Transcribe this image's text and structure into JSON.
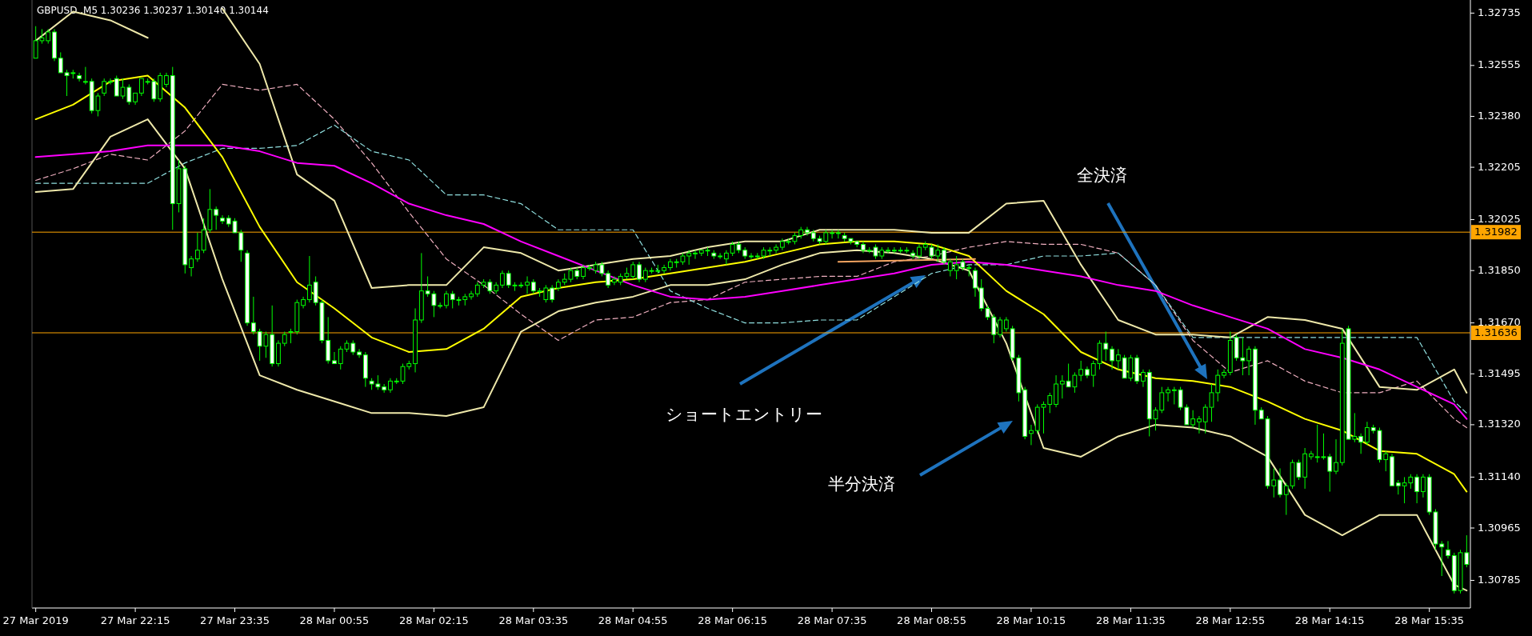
{
  "chart_data": {
    "type": "candlestick",
    "title": "GBPUSD.,M5 1.30236 1.30237 1.30140 1.30144",
    "color": "#00ff00",
    "x": [
      "2019-03-27T20:55",
      "2019-03-27T21:00",
      "2019-03-27T21:05",
      "2019-03-27T21:10",
      "2019-03-27T21:15",
      "2019-03-27T21:20",
      "2019-03-27T21:25",
      "2019-03-27T21:30",
      "2019-03-27T21:35",
      "2019-03-27T21:40",
      "2019-03-27T21:45",
      "2019-03-27T21:50",
      "2019-03-27T21:55",
      "2019-03-27T22:00",
      "2019-03-27T22:05",
      "2019-03-27T22:10",
      "2019-03-27T22:15",
      "2019-03-27T22:20",
      "2019-03-27T22:25",
      "2019-03-27T22:30",
      "2019-03-27T22:35",
      "2019-03-27T22:40",
      "2019-03-27T22:45",
      "2019-03-27T22:50",
      "2019-03-27T22:55",
      "2019-03-27T23:00",
      "2019-03-27T23:05",
      "2019-03-27T23:10",
      "2019-03-27T23:15",
      "2019-03-27T23:20",
      "2019-03-27T23:25",
      "2019-03-27T23:30",
      "2019-03-27T23:35",
      "2019-03-27T23:40",
      "2019-03-27T23:45",
      "2019-03-27T23:50",
      "2019-03-27T23:55",
      "2019-03-28T00:00",
      "2019-03-28T00:05",
      "2019-03-28T00:10",
      "2019-03-28T00:15",
      "2019-03-28T00:20",
      "2019-03-28T00:25",
      "2019-03-28T00:30",
      "2019-03-28T00:35",
      "2019-03-28T00:40",
      "2019-03-28T00:45",
      "2019-03-28T00:50",
      "2019-03-28T00:55",
      "2019-03-28T01:00",
      "2019-03-28T01:05",
      "2019-03-28T01:10",
      "2019-03-28T01:15",
      "2019-03-28T01:20",
      "2019-03-28T01:25",
      "2019-03-28T01:30",
      "2019-03-28T01:35",
      "2019-03-28T01:40",
      "2019-03-28T01:45",
      "2019-03-28T01:50",
      "2019-03-28T01:55",
      "2019-03-28T02:00",
      "2019-03-28T02:05",
      "2019-03-28T02:10",
      "2019-03-28T02:15",
      "2019-03-28T02:20",
      "2019-03-28T02:25",
      "2019-03-28T02:30",
      "2019-03-28T02:35",
      "2019-03-28T02:40",
      "2019-03-28T02:45",
      "2019-03-28T02:50",
      "2019-03-28T02:55",
      "2019-03-28T03:00",
      "2019-03-28T03:05",
      "2019-03-28T03:10",
      "2019-03-28T03:15",
      "2019-03-28T03:20",
      "2019-03-28T03:25",
      "2019-03-28T03:30",
      "2019-03-28T03:35",
      "2019-03-28T03:40",
      "2019-03-28T03:45",
      "2019-03-28T03:50",
      "2019-03-28T03:55",
      "2019-03-28T04:00",
      "2019-03-28T04:05",
      "2019-03-28T04:10",
      "2019-03-28T04:15",
      "2019-03-28T04:20",
      "2019-03-28T04:25",
      "2019-03-28T04:30",
      "2019-03-28T04:35",
      "2019-03-28T04:40",
      "2019-03-28T04:45",
      "2019-03-28T04:50",
      "2019-03-28T04:55",
      "2019-03-28T05:00",
      "2019-03-28T05:05",
      "2019-03-28T05:10",
      "2019-03-28T05:15",
      "2019-03-28T05:20",
      "2019-03-28T05:25",
      "2019-03-28T05:30",
      "2019-03-28T05:35",
      "2019-03-28T05:40",
      "2019-03-28T05:45",
      "2019-03-28T05:50",
      "2019-03-28T05:55",
      "2019-03-28T06:00",
      "2019-03-28T06:05",
      "2019-03-28T06:10",
      "2019-03-28T06:15",
      "2019-03-28T06:20",
      "2019-03-28T06:25",
      "2019-03-28T06:30",
      "2019-03-28T06:35",
      "2019-03-28T06:40",
      "2019-03-28T06:45",
      "2019-03-28T06:50",
      "2019-03-28T06:55",
      "2019-03-28T07:00",
      "2019-03-28T07:05",
      "2019-03-28T07:10",
      "2019-03-28T07:15",
      "2019-03-28T07:20",
      "2019-03-28T07:25",
      "2019-03-28T07:30",
      "2019-03-28T07:35",
      "2019-03-28T07:40",
      "2019-03-28T07:45",
      "2019-03-28T07:50",
      "2019-03-28T07:55",
      "2019-03-28T08:00",
      "2019-03-28T08:05",
      "2019-03-28T08:10",
      "2019-03-28T08:15",
      "2019-03-28T08:20",
      "2019-03-28T08:25",
      "2019-03-28T08:30",
      "2019-03-28T08:35",
      "2019-03-28T08:40",
      "2019-03-28T08:45",
      "2019-03-28T08:50",
      "2019-03-28T08:55",
      "2019-03-28T09:00",
      "2019-03-28T09:05",
      "2019-03-28T09:10",
      "2019-03-28T09:15",
      "2019-03-28T09:20",
      "2019-03-28T09:25",
      "2019-03-28T09:30",
      "2019-03-28T09:35",
      "2019-03-28T09:40",
      "2019-03-28T09:45",
      "2019-03-28T09:50",
      "2019-03-28T09:55",
      "2019-03-28T10:00",
      "2019-03-28T10:05",
      "2019-03-28T10:10",
      "2019-03-28T10:15",
      "2019-03-28T10:20",
      "2019-03-28T10:25",
      "2019-03-28T10:30",
      "2019-03-28T10:35",
      "2019-03-28T10:40",
      "2019-03-28T10:45",
      "2019-03-28T10:50",
      "2019-03-28T10:55",
      "2019-03-28T11:00",
      "2019-03-28T11:05",
      "2019-03-28T11:10",
      "2019-03-28T11:15",
      "2019-03-28T11:20",
      "2019-03-28T11:25",
      "2019-03-28T11:30",
      "2019-03-28T11:35",
      "2019-03-28T11:40",
      "2019-03-28T11:45",
      "2019-03-28T11:50",
      "2019-03-28T11:55",
      "2019-03-28T12:00",
      "2019-03-28T12:05",
      "2019-03-28T12:10",
      "2019-03-28T12:15",
      "2019-03-28T12:20",
      "2019-03-28T12:25",
      "2019-03-28T12:30",
      "2019-03-28T12:35",
      "2019-03-28T12:40",
      "2019-03-28T12:45",
      "2019-03-28T12:50",
      "2019-03-28T12:55",
      "2019-03-28T13:00",
      "2019-03-28T13:05",
      "2019-03-28T13:10",
      "2019-03-28T13:15",
      "2019-03-28T13:20",
      "2019-03-28T13:25",
      "2019-03-28T13:30",
      "2019-03-28T13:35",
      "2019-03-28T13:40",
      "2019-03-28T13:45",
      "2019-03-28T13:50",
      "2019-03-28T13:55",
      "2019-03-28T14:00",
      "2019-03-28T14:05",
      "2019-03-28T14:10",
      "2019-03-28T14:15",
      "2019-03-28T14:20",
      "2019-03-28T14:25",
      "2019-03-28T14:30",
      "2019-03-28T14:35",
      "2019-03-28T14:40",
      "2019-03-28T14:45",
      "2019-03-28T14:50",
      "2019-03-28T14:55",
      "2019-03-28T15:00",
      "2019-03-28T15:05",
      "2019-03-28T15:10",
      "2019-03-28T15:15",
      "2019-03-28T15:20",
      "2019-03-28T15:25",
      "2019-03-28T15:30",
      "2019-03-28T15:35",
      "2019-03-28T15:40",
      "2019-03-28T15:45",
      "2019-03-28T15:50",
      "2019-03-28T15:55",
      "2019-03-28T16:00",
      "2019-03-28T16:05"
    ],
    "ohlc": [
      [
        1.3258,
        1.3269,
        1.3258,
        1.3264
      ],
      [
        1.3264,
        1.3268,
        1.3263,
        1.3265
      ],
      [
        1.3264,
        1.3268,
        1.3263,
        1.3267
      ],
      [
        1.3267,
        1.3268,
        1.3257,
        1.3258
      ],
      [
        1.3258,
        1.326,
        1.3253,
        1.3253
      ],
      [
        1.3253,
        1.3254,
        1.3245,
        1.3252
      ],
      [
        1.3253,
        1.3254,
        1.3251,
        1.3253
      ],
      [
        1.3252,
        1.3253,
        1.325,
        1.3251
      ],
      [
        1.325,
        1.3255,
        1.3249,
        1.325
      ],
      [
        1.325,
        1.3251,
        1.3239,
        1.324
      ],
      [
        1.324,
        1.3246,
        1.3238,
        1.3245
      ],
      [
        1.3246,
        1.3251,
        1.3245,
        1.325
      ],
      [
        1.325,
        1.3251,
        1.3249,
        1.325
      ],
      [
        1.3251,
        1.3252,
        1.3245,
        1.3245
      ],
      [
        1.3245,
        1.3251,
        1.3244,
        1.3248
      ],
      [
        1.3248,
        1.3249,
        1.3242,
        1.3243
      ],
      [
        1.3243,
        1.3246,
        1.3242,
        1.3246
      ],
      [
        1.3246,
        1.3251,
        1.3245,
        1.3251
      ],
      [
        1.325,
        1.3251,
        1.3249,
        1.325
      ],
      [
        1.325,
        1.3251,
        1.3243,
        1.3244
      ],
      [
        1.3244,
        1.3253,
        1.3243,
        1.3252
      ],
      [
        1.3249,
        1.3253,
        1.3248,
        1.3252
      ],
      [
        1.3252,
        1.3255,
        1.3199,
        1.3208
      ],
      [
        1.3208,
        1.3223,
        1.3205,
        1.322
      ],
      [
        1.322,
        1.3221,
        1.3184,
        1.3187
      ],
      [
        1.3186,
        1.319,
        1.3183,
        1.3189
      ],
      [
        1.3189,
        1.3198,
        1.3188,
        1.3192
      ],
      [
        1.3192,
        1.3203,
        1.3191,
        1.3199
      ],
      [
        1.3199,
        1.3213,
        1.3198,
        1.3206
      ],
      [
        1.3206,
        1.3207,
        1.3199,
        1.3204
      ],
      [
        1.3203,
        1.3204,
        1.3201,
        1.3202
      ],
      [
        1.3203,
        1.3204,
        1.32,
        1.3201
      ],
      [
        1.3202,
        1.3203,
        1.3198,
        1.3198
      ],
      [
        1.3198,
        1.3199,
        1.3188,
        1.3192
      ],
      [
        1.3191,
        1.3192,
        1.3166,
        1.3167
      ],
      [
        1.3167,
        1.3176,
        1.3163,
        1.3164
      ],
      [
        1.3164,
        1.3165,
        1.3154,
        1.3159
      ],
      [
        1.3159,
        1.3164,
        1.3155,
        1.3163
      ],
      [
        1.3163,
        1.3173,
        1.3152,
        1.3153
      ],
      [
        1.3153,
        1.3161,
        1.3152,
        1.316
      ],
      [
        1.316,
        1.3164,
        1.3159,
        1.3163
      ],
      [
        1.3164,
        1.3165,
        1.316,
        1.3164
      ],
      [
        1.3164,
        1.3175,
        1.3163,
        1.3174
      ],
      [
        1.3173,
        1.3176,
        1.3172,
        1.3175
      ],
      [
        1.3175,
        1.319,
        1.3174,
        1.318
      ],
      [
        1.3181,
        1.3183,
        1.3173,
        1.3174
      ],
      [
        1.3174,
        1.3175,
        1.316,
        1.3161
      ],
      [
        1.3161,
        1.3169,
        1.3153,
        1.3154
      ],
      [
        1.3154,
        1.3157,
        1.3153,
        1.3153
      ],
      [
        1.3153,
        1.3159,
        1.3151,
        1.3158
      ],
      [
        1.3158,
        1.3161,
        1.3157,
        1.316
      ],
      [
        1.316,
        1.3161,
        1.3156,
        1.3157
      ],
      [
        1.3157,
        1.3158,
        1.3155,
        1.3156
      ],
      [
        1.3156,
        1.3157,
        1.3145,
        1.3148
      ],
      [
        1.3147,
        1.3148,
        1.3144,
        1.3146
      ],
      [
        1.3146,
        1.3149,
        1.3144,
        1.3145
      ],
      [
        1.3145,
        1.3146,
        1.3143,
        1.3144
      ],
      [
        1.3144,
        1.3148,
        1.3143,
        1.3147
      ],
      [
        1.3147,
        1.3148,
        1.3146,
        1.3147
      ],
      [
        1.3147,
        1.3153,
        1.3146,
        1.3152
      ],
      [
        1.3152,
        1.3154,
        1.3151,
        1.3153
      ],
      [
        1.3153,
        1.3172,
        1.315,
        1.3168
      ],
      [
        1.3168,
        1.3191,
        1.3167,
        1.3178
      ],
      [
        1.3178,
        1.3183,
        1.3176,
        1.3177
      ],
      [
        1.3177,
        1.3178,
        1.3169,
        1.3173
      ],
      [
        1.3173,
        1.3174,
        1.3172,
        1.3173
      ],
      [
        1.3173,
        1.3178,
        1.3172,
        1.3177
      ],
      [
        1.3177,
        1.3178,
        1.3172,
        1.3175
      ],
      [
        1.3175,
        1.3176,
        1.3173,
        1.3175
      ],
      [
        1.3175,
        1.3177,
        1.3173,
        1.3176
      ],
      [
        1.3176,
        1.3178,
        1.3175,
        1.3177
      ],
      [
        1.3177,
        1.3181,
        1.3176,
        1.318
      ],
      [
        1.318,
        1.3182,
        1.3179,
        1.3181
      ],
      [
        1.3181,
        1.3182,
        1.3177,
        1.3178
      ],
      [
        1.3178,
        1.3181,
        1.3177,
        1.318
      ],
      [
        1.318,
        1.3185,
        1.3179,
        1.3184
      ],
      [
        1.3184,
        1.3185,
        1.3179,
        1.318
      ],
      [
        1.318,
        1.3181,
        1.3178,
        1.318
      ],
      [
        1.318,
        1.3181,
        1.3179,
        1.318
      ],
      [
        1.318,
        1.3183,
        1.3177,
        1.3181
      ],
      [
        1.3181,
        1.3182,
        1.3177,
        1.3178
      ],
      [
        1.3178,
        1.3179,
        1.3176,
        1.3178
      ],
      [
        1.3175,
        1.318,
        1.3174,
        1.3179
      ],
      [
        1.3179,
        1.318,
        1.3174,
        1.3175
      ],
      [
        1.3179,
        1.3182,
        1.3178,
        1.3181
      ],
      [
        1.3181,
        1.3184,
        1.318,
        1.3182
      ],
      [
        1.3182,
        1.3186,
        1.3181,
        1.3185
      ],
      [
        1.3185,
        1.3186,
        1.3182,
        1.3183
      ],
      [
        1.3183,
        1.3187,
        1.3182,
        1.3186
      ],
      [
        1.3186,
        1.3187,
        1.3185,
        1.3186
      ],
      [
        1.3185,
        1.3188,
        1.3184,
        1.3187
      ],
      [
        1.3187,
        1.3188,
        1.3183,
        1.3184
      ],
      [
        1.3184,
        1.3185,
        1.3179,
        1.318
      ],
      [
        1.3181,
        1.3183,
        1.318,
        1.3182
      ],
      [
        1.3181,
        1.3184,
        1.318,
        1.3183
      ],
      [
        1.3183,
        1.3186,
        1.3182,
        1.3184
      ],
      [
        1.3183,
        1.3188,
        1.3182,
        1.3187
      ],
      [
        1.3187,
        1.3188,
        1.3181,
        1.3182
      ],
      [
        1.3182,
        1.3186,
        1.3181,
        1.3185
      ],
      [
        1.3185,
        1.3186,
        1.3184,
        1.3185
      ],
      [
        1.3185,
        1.3187,
        1.3184,
        1.3185
      ],
      [
        1.3185,
        1.3187,
        1.3184,
        1.3186
      ],
      [
        1.3186,
        1.3189,
        1.3185,
        1.3188
      ],
      [
        1.3188,
        1.3189,
        1.3186,
        1.3188
      ],
      [
        1.3188,
        1.3191,
        1.3187,
        1.319
      ],
      [
        1.319,
        1.3192,
        1.3187,
        1.3191
      ],
      [
        1.3191,
        1.3192,
        1.3189,
        1.3191
      ],
      [
        1.3191,
        1.3192,
        1.319,
        1.3192
      ],
      [
        1.3192,
        1.3193,
        1.319,
        1.3192
      ],
      [
        1.3191,
        1.3192,
        1.3189,
        1.319
      ],
      [
        1.319,
        1.3191,
        1.3189,
        1.319
      ],
      [
        1.3189,
        1.3192,
        1.3187,
        1.3191
      ],
      [
        1.3191,
        1.3195,
        1.319,
        1.3194
      ],
      [
        1.3194,
        1.3195,
        1.3191,
        1.3192
      ],
      [
        1.3192,
        1.3193,
        1.3189,
        1.319
      ],
      [
        1.319,
        1.3191,
        1.3189,
        1.319
      ],
      [
        1.319,
        1.3191,
        1.3189,
        1.319
      ],
      [
        1.319,
        1.3193,
        1.3189,
        1.3192
      ],
      [
        1.3192,
        1.3193,
        1.319,
        1.3192
      ],
      [
        1.3192,
        1.3194,
        1.3191,
        1.3193
      ],
      [
        1.3193,
        1.3196,
        1.3192,
        1.3195
      ],
      [
        1.3195,
        1.3196,
        1.3194,
        1.3195
      ],
      [
        1.3195,
        1.3198,
        1.3194,
        1.3197
      ],
      [
        1.3197,
        1.32,
        1.3196,
        1.3199
      ],
      [
        1.3199,
        1.32,
        1.3197,
        1.3198
      ],
      [
        1.3198,
        1.3199,
        1.3195,
        1.3196
      ],
      [
        1.3196,
        1.3197,
        1.3194,
        1.3195
      ],
      [
        1.3195,
        1.3199,
        1.3194,
        1.3198
      ],
      [
        1.3198,
        1.3199,
        1.3196,
        1.3198
      ],
      [
        1.3198,
        1.3199,
        1.3196,
        1.3198
      ],
      [
        1.3197,
        1.3198,
        1.3195,
        1.3196
      ],
      [
        1.3196,
        1.3196,
        1.3194,
        1.3195
      ],
      [
        1.3195,
        1.3195,
        1.3193,
        1.3194
      ],
      [
        1.3194,
        1.3195,
        1.3191,
        1.3192
      ],
      [
        1.3192,
        1.3193,
        1.3191,
        1.3192
      ],
      [
        1.3193,
        1.3194,
        1.3189,
        1.319
      ],
      [
        1.319,
        1.3193,
        1.3189,
        1.3192
      ],
      [
        1.3192,
        1.3193,
        1.3191,
        1.3192
      ],
      [
        1.3192,
        1.3193,
        1.3191,
        1.3192
      ],
      [
        1.3192,
        1.3193,
        1.3191,
        1.3192
      ],
      [
        1.3192,
        1.3193,
        1.3191,
        1.3192
      ],
      [
        1.3191,
        1.3192,
        1.3189,
        1.319
      ],
      [
        1.319,
        1.3194,
        1.3189,
        1.3193
      ],
      [
        1.3193,
        1.3195,
        1.3192,
        1.3194
      ],
      [
        1.3193,
        1.3194,
        1.3189,
        1.319
      ],
      [
        1.319,
        1.3194,
        1.3188,
        1.3192
      ],
      [
        1.3192,
        1.3193,
        1.3187,
        1.3188
      ],
      [
        1.3185,
        1.3189,
        1.3183,
        1.3188
      ],
      [
        1.3185,
        1.319,
        1.3182,
        1.3187
      ],
      [
        1.3188,
        1.3189,
        1.3185,
        1.3186
      ],
      [
        1.3186,
        1.3187,
        1.3183,
        1.3186
      ],
      [
        1.3185,
        1.3186,
        1.3176,
        1.3179
      ],
      [
        1.3179,
        1.3182,
        1.3171,
        1.3172
      ],
      [
        1.3172,
        1.3173,
        1.3168,
        1.3169
      ],
      [
        1.3169,
        1.317,
        1.316,
        1.3163
      ],
      [
        1.3163,
        1.3169,
        1.3162,
        1.3168
      ],
      [
        1.3165,
        1.3169,
        1.3164,
        1.3168
      ],
      [
        1.3165,
        1.3166,
        1.3154,
        1.3155
      ],
      [
        1.3155,
        1.3156,
        1.314,
        1.3143
      ],
      [
        1.3144,
        1.3145,
        1.3127,
        1.3128
      ],
      [
        1.3129,
        1.3132,
        1.3125,
        1.313
      ],
      [
        1.313,
        1.3139,
        1.3129,
        1.3138
      ],
      [
        1.3138,
        1.314,
        1.3129,
        1.3139
      ],
      [
        1.3139,
        1.3143,
        1.3136,
        1.3142
      ],
      [
        1.3139,
        1.3149,
        1.3138,
        1.3146
      ],
      [
        1.3146,
        1.3149,
        1.3141,
        1.3147
      ],
      [
        1.3147,
        1.3153,
        1.3145,
        1.3145
      ],
      [
        1.3145,
        1.315,
        1.3143,
        1.3149
      ],
      [
        1.3149,
        1.3154,
        1.3147,
        1.3151
      ],
      [
        1.3151,
        1.3152,
        1.3148,
        1.3149
      ],
      [
        1.3149,
        1.3154,
        1.3145,
        1.3153
      ],
      [
        1.3153,
        1.3161,
        1.3151,
        1.316
      ],
      [
        1.316,
        1.3164,
        1.3154,
        1.3158
      ],
      [
        1.3158,
        1.3159,
        1.3151,
        1.3154
      ],
      [
        1.3154,
        1.3158,
        1.3151,
        1.3156
      ],
      [
        1.3155,
        1.3156,
        1.3148,
        1.3148
      ],
      [
        1.3148,
        1.3156,
        1.3147,
        1.3155
      ],
      [
        1.3155,
        1.3156,
        1.3146,
        1.3147
      ],
      [
        1.3147,
        1.3151,
        1.3145,
        1.315
      ],
      [
        1.315,
        1.3151,
        1.3128,
        1.3134
      ],
      [
        1.3134,
        1.3138,
        1.313,
        1.3137
      ],
      [
        1.3137,
        1.3145,
        1.3136,
        1.3143
      ],
      [
        1.3143,
        1.3145,
        1.314,
        1.3144
      ],
      [
        1.3144,
        1.3145,
        1.3139,
        1.3144
      ],
      [
        1.3144,
        1.3145,
        1.3137,
        1.3138
      ],
      [
        1.3138,
        1.3139,
        1.3132,
        1.3132
      ],
      [
        1.3132,
        1.3137,
        1.3131,
        1.3134
      ],
      [
        1.3133,
        1.3135,
        1.3129,
        1.3134
      ],
      [
        1.3133,
        1.3139,
        1.3129,
        1.3138
      ],
      [
        1.3138,
        1.3146,
        1.3133,
        1.3143
      ],
      [
        1.3143,
        1.3151,
        1.314,
        1.3149
      ],
      [
        1.3149,
        1.3151,
        1.3148,
        1.315
      ],
      [
        1.315,
        1.3164,
        1.3149,
        1.3161
      ],
      [
        1.3162,
        1.3163,
        1.3154,
        1.3155
      ],
      [
        1.3155,
        1.3162,
        1.3149,
        1.3154
      ],
      [
        1.3154,
        1.3159,
        1.3149,
        1.3158
      ],
      [
        1.3158,
        1.3159,
        1.3132,
        1.3137
      ],
      [
        1.3137,
        1.3138,
        1.3134,
        1.3134
      ],
      [
        1.3134,
        1.3135,
        1.311,
        1.3111
      ],
      [
        1.3111,
        1.3117,
        1.3107,
        1.3113
      ],
      [
        1.3113,
        1.3117,
        1.3107,
        1.3108
      ],
      [
        1.3108,
        1.3112,
        1.3101,
        1.3111
      ],
      [
        1.3111,
        1.312,
        1.311,
        1.3119
      ],
      [
        1.3119,
        1.312,
        1.3113,
        1.3114
      ],
      [
        1.3114,
        1.3124,
        1.311,
        1.3122
      ],
      [
        1.3121,
        1.3123,
        1.312,
        1.3122
      ],
      [
        1.3121,
        1.3132,
        1.3119,
        1.3121
      ],
      [
        1.3121,
        1.3129,
        1.312,
        1.3121
      ],
      [
        1.3121,
        1.3122,
        1.3109,
        1.3116
      ],
      [
        1.3116,
        1.3127,
        1.3115,
        1.3119
      ],
      [
        1.3119,
        1.3165,
        1.3118,
        1.316
      ],
      [
        1.3165,
        1.3166,
        1.3127,
        1.3127
      ],
      [
        1.3127,
        1.3136,
        1.3126,
        1.3128
      ],
      [
        1.3128,
        1.3129,
        1.3122,
        1.3126
      ],
      [
        1.3126,
        1.3133,
        1.3125,
        1.3131
      ],
      [
        1.3131,
        1.3132,
        1.3129,
        1.313
      ],
      [
        1.313,
        1.3131,
        1.3119,
        1.312
      ],
      [
        1.312,
        1.3123,
        1.3116,
        1.3122
      ],
      [
        1.3121,
        1.3122,
        1.3111,
        1.3111
      ],
      [
        1.3112,
        1.3113,
        1.3108,
        1.3111
      ],
      [
        1.3111,
        1.3114,
        1.3105,
        1.3112
      ],
      [
        1.3112,
        1.3115,
        1.311,
        1.3114
      ],
      [
        1.3114,
        1.3115,
        1.3105,
        1.3109
      ],
      [
        1.3109,
        1.3115,
        1.3107,
        1.3114
      ],
      [
        1.3114,
        1.3115,
        1.3101,
        1.3102
      ],
      [
        1.3102,
        1.3103,
        1.3089,
        1.3091
      ],
      [
        1.3091,
        1.3092,
        1.308,
        1.309
      ],
      [
        1.3089,
        1.3092,
        1.3086,
        1.3087
      ],
      [
        1.3087,
        1.3088,
        1.3074,
        1.3075
      ],
      [
        1.3075,
        1.3089,
        1.3074,
        1.3088
      ],
      [
        1.3088,
        1.3094,
        1.3083,
        1.3084
      ]
    ],
    "series": [
      {
        "type": "line",
        "color": "#f0b0c0",
        "line_style": "dashed",
        "x": [
          "2019-03-27T20:55",
          "2019-03-27T21:25",
          "2019-03-27T21:55",
          "2019-03-27T22:25",
          "2019-03-27T22:55",
          "2019-03-27T23:25",
          "2019-03-27T23:55",
          "2019-03-28T00:25",
          "2019-03-28T00:55",
          "2019-03-28T01:25",
          "2019-03-28T01:55",
          "2019-03-28T02:25",
          "2019-03-28T02:55",
          "2019-03-28T03:25",
          "2019-03-28T03:55",
          "2019-03-28T04:25",
          "2019-03-28T04:55",
          "2019-03-28T05:25",
          "2019-03-28T05:55",
          "2019-03-28T06:25",
          "2019-03-28T06:55",
          "2019-03-28T07:25",
          "2019-03-28T07:55",
          "2019-03-28T08:25",
          "2019-03-28T08:55",
          "2019-03-28T09:25",
          "2019-03-28T09:55",
          "2019-03-28T10:25",
          "2019-03-28T10:55",
          "2019-03-28T11:25",
          "2019-03-28T11:55",
          "2019-03-28T12:25",
          "2019-03-28T12:55",
          "2019-03-28T13:25",
          "2019-03-28T13:55",
          "2019-03-28T14:25",
          "2019-03-28T14:55",
          "2019-03-28T15:25",
          "2019-03-28T15:55",
          "2019-03-28T16:05"
        ],
        "values": [
          1.3216,
          1.322,
          1.3225,
          1.3223,
          1.3233,
          1.3249,
          1.3247,
          1.3249,
          1.3237,
          1.3222,
          1.3205,
          1.3189,
          1.318,
          1.317,
          1.3161,
          1.3168,
          1.3169,
          1.3174,
          1.3175,
          1.3181,
          1.3182,
          1.3183,
          1.3183,
          1.3188,
          1.319,
          1.3193,
          1.3195,
          1.3194,
          1.3194,
          1.3191,
          1.318,
          1.3161,
          1.315,
          1.3154,
          1.3147,
          1.3143,
          1.3143,
          1.3147,
          1.3134,
          1.3131
        ]
      },
      {
        "type": "line",
        "color": "#90e0e0",
        "line_style": "dashed",
        "x": [
          "2019-03-27T20:55",
          "2019-03-27T21:25",
          "2019-03-27T21:55",
          "2019-03-27T22:25",
          "2019-03-27T22:55",
          "2019-03-27T23:25",
          "2019-03-27T23:55",
          "2019-03-28T00:25",
          "2019-03-28T00:55",
          "2019-03-28T01:25",
          "2019-03-28T01:55",
          "2019-03-28T02:25",
          "2019-03-28T02:55",
          "2019-03-28T03:25",
          "2019-03-28T03:55",
          "2019-03-28T04:25",
          "2019-03-28T04:55",
          "2019-03-28T05:25",
          "2019-03-28T05:55",
          "2019-03-28T06:25",
          "2019-03-28T06:55",
          "2019-03-28T07:25",
          "2019-03-28T07:55",
          "2019-03-28T08:25",
          "2019-03-28T08:55",
          "2019-03-28T09:25",
          "2019-03-28T09:55",
          "2019-03-28T10:25",
          "2019-03-28T10:55",
          "2019-03-28T11:25",
          "2019-03-28T11:55",
          "2019-03-28T12:25",
          "2019-03-28T12:55",
          "2019-03-28T13:25",
          "2019-03-28T13:55",
          "2019-03-28T14:25",
          "2019-03-28T14:55",
          "2019-03-28T15:25",
          "2019-03-28T15:55",
          "2019-03-28T16:05"
        ],
        "values": [
          1.3215,
          1.3215,
          1.3215,
          1.3215,
          1.3222,
          1.3227,
          1.3227,
          1.3228,
          1.3235,
          1.3226,
          1.3223,
          1.3211,
          1.3211,
          1.3208,
          1.3199,
          1.3199,
          1.3199,
          1.3178,
          1.3172,
          1.3167,
          1.3167,
          1.3168,
          1.3168,
          1.3176,
          1.3184,
          1.3187,
          1.3187,
          1.319,
          1.319,
          1.3191,
          1.318,
          1.3162,
          1.3162,
          1.3162,
          1.3162,
          1.3162,
          1.3162,
          1.3162,
          1.314,
          1.3136
        ]
      },
      {
        "type": "line",
        "color": "#eee8aa",
        "line_style": "solid",
        "x": [
          "2019-03-27T20:55",
          "2019-03-27T21:25",
          "2019-03-27T21:55",
          "2019-03-27T22:25",
          "2019-03-27T22:55",
          "2019-03-27T23:25",
          "2019-03-27T23:55",
          "2019-03-28T00:25",
          "2019-03-28T00:55",
          "2019-03-28T01:25",
          "2019-03-28T01:55",
          "2019-03-28T02:25",
          "2019-03-28T02:55",
          "2019-03-28T03:25",
          "2019-03-28T03:55",
          "2019-03-28T04:25",
          "2019-03-28T04:55",
          "2019-03-28T05:25",
          "2019-03-28T05:55",
          "2019-03-28T06:25",
          "2019-03-28T06:55",
          "2019-03-28T07:25",
          "2019-03-28T07:55",
          "2019-03-28T08:25",
          "2019-03-28T08:55",
          "2019-03-28T09:25",
          "2019-03-28T09:55",
          "2019-03-28T10:25",
          "2019-03-28T10:55",
          "2019-03-28T11:25",
          "2019-03-28T11:55",
          "2019-03-28T12:25",
          "2019-03-28T12:55",
          "2019-03-28T13:25",
          "2019-03-28T13:55",
          "2019-03-28T14:25",
          "2019-03-28T14:55",
          "2019-03-28T15:25",
          "2019-03-28T15:55",
          "2019-03-28T16:05"
        ],
        "values": [
          1.3264,
          1.3274,
          1.3271,
          1.3265,
          null,
          1.3275,
          1.3256,
          1.3218,
          1.3209,
          1.3179,
          1.318,
          1.318,
          1.3193,
          1.3191,
          1.3185,
          1.3187,
          1.3189,
          1.319,
          1.3193,
          1.3195,
          1.3195,
          1.3199,
          1.3199,
          1.3199,
          1.3198,
          1.3198,
          1.3208,
          1.3209,
          1.3187,
          1.3168,
          1.3163,
          1.3163,
          1.3162,
          1.3169,
          1.3168,
          1.3165,
          1.3145,
          1.3144,
          1.3151,
          1.3143
        ]
      },
      {
        "type": "line",
        "color": "#eee8aa",
        "line_style": "solid",
        "x": [
          "2019-03-27T20:55",
          "2019-03-27T21:25",
          "2019-03-27T21:55",
          "2019-03-27T22:25",
          "2019-03-27T22:55",
          "2019-03-27T23:25",
          "2019-03-27T23:55",
          "2019-03-28T00:25",
          "2019-03-28T00:55",
          "2019-03-28T01:25",
          "2019-03-28T01:55",
          "2019-03-28T02:25",
          "2019-03-28T02:55",
          "2019-03-28T03:25",
          "2019-03-28T03:55",
          "2019-03-28T04:25",
          "2019-03-28T04:55",
          "2019-03-28T05:25",
          "2019-03-28T05:55",
          "2019-03-28T06:25",
          "2019-03-28T06:55",
          "2019-03-28T07:25",
          "2019-03-28T07:55",
          "2019-03-28T08:25",
          "2019-03-28T08:55",
          "2019-03-28T09:25",
          "2019-03-28T09:55",
          "2019-03-28T10:25",
          "2019-03-28T10:55",
          "2019-03-28T11:25",
          "2019-03-28T11:55",
          "2019-03-28T12:25",
          "2019-03-28T12:55",
          "2019-03-28T13:25",
          "2019-03-28T13:55",
          "2019-03-28T14:25",
          "2019-03-28T14:55",
          "2019-03-28T15:25",
          "2019-03-28T15:55",
          "2019-03-28T16:05"
        ],
        "values": [
          1.3212,
          1.3213,
          1.3231,
          1.3237,
          1.322,
          1.3182,
          1.3149,
          1.3144,
          1.314,
          1.3136,
          1.3136,
          1.3135,
          1.3138,
          1.3164,
          1.3171,
          1.3174,
          1.3176,
          1.318,
          1.318,
          1.3182,
          1.3187,
          1.3191,
          1.3192,
          1.3191,
          1.3189,
          1.3185,
          1.316,
          1.3124,
          1.3121,
          1.3128,
          1.3132,
          1.3131,
          1.3128,
          1.3121,
          1.3101,
          1.3094,
          1.3101,
          1.3101,
          1.3077,
          1.3075
        ]
      },
      {
        "type": "line",
        "color": "#ff00ff",
        "line_style": "solid",
        "x": [
          "2019-03-27T20:55",
          "2019-03-27T21:25",
          "2019-03-27T21:55",
          "2019-03-27T22:25",
          "2019-03-27T22:55",
          "2019-03-27T23:25",
          "2019-03-27T23:55",
          "2019-03-28T00:25",
          "2019-03-28T00:55",
          "2019-03-28T01:25",
          "2019-03-28T01:55",
          "2019-03-28T02:25",
          "2019-03-28T02:55",
          "2019-03-28T03:25",
          "2019-03-28T03:55",
          "2019-03-28T04:25",
          "2019-03-28T04:55",
          "2019-03-28T05:25",
          "2019-03-28T05:55",
          "2019-03-28T06:25",
          "2019-03-28T06:55",
          "2019-03-28T07:25",
          "2019-03-28T07:55",
          "2019-03-28T08:25",
          "2019-03-28T08:55",
          "2019-03-28T09:25",
          "2019-03-28T09:55",
          "2019-03-28T10:25",
          "2019-03-28T10:55",
          "2019-03-28T11:25",
          "2019-03-28T11:55",
          "2019-03-28T12:25",
          "2019-03-28T12:55",
          "2019-03-28T13:25",
          "2019-03-28T13:55",
          "2019-03-28T14:25",
          "2019-03-28T14:55",
          "2019-03-28T15:25",
          "2019-03-28T15:55",
          "2019-03-28T16:05"
        ],
        "values": [
          1.3224,
          1.3225,
          1.3226,
          1.3228,
          1.3228,
          1.3228,
          1.3226,
          1.3222,
          1.3221,
          1.3215,
          1.3208,
          1.3204,
          1.3201,
          1.3195,
          1.319,
          1.3185,
          1.318,
          1.3176,
          1.3175,
          1.3176,
          1.3178,
          1.318,
          1.3182,
          1.3184,
          1.3187,
          1.3188,
          1.3187,
          1.3185,
          1.3183,
          1.318,
          1.3178,
          1.3173,
          1.3169,
          1.3165,
          1.3158,
          1.3155,
          1.3151,
          1.3145,
          1.3139,
          1.3134
        ]
      },
      {
        "type": "line",
        "color": "#ffff00",
        "line_style": "solid",
        "x": [
          "2019-03-27T20:55",
          "2019-03-27T21:25",
          "2019-03-27T21:55",
          "2019-03-27T22:25",
          "2019-03-27T22:55",
          "2019-03-27T23:25",
          "2019-03-27T23:55",
          "2019-03-28T00:25",
          "2019-03-28T00:55",
          "2019-03-28T01:25",
          "2019-03-28T01:55",
          "2019-03-28T02:25",
          "2019-03-28T02:55",
          "2019-03-28T03:25",
          "2019-03-28T03:55",
          "2019-03-28T04:25",
          "2019-03-28T04:55",
          "2019-03-28T05:25",
          "2019-03-28T05:55",
          "2019-03-28T06:25",
          "2019-03-28T06:55",
          "2019-03-28T07:25",
          "2019-03-28T07:55",
          "2019-03-28T08:25",
          "2019-03-28T08:55",
          "2019-03-28T09:25",
          "2019-03-28T09:55",
          "2019-03-28T10:25",
          "2019-03-28T10:55",
          "2019-03-28T11:25",
          "2019-03-28T11:55",
          "2019-03-28T12:25",
          "2019-03-28T12:55",
          "2019-03-28T13:25",
          "2019-03-28T13:55",
          "2019-03-28T14:25",
          "2019-03-28T14:55",
          "2019-03-28T15:25",
          "2019-03-28T15:55",
          "2019-03-28T16:05"
        ],
        "values": [
          1.3237,
          1.3242,
          1.325,
          1.3252,
          1.3241,
          1.3224,
          1.32,
          1.3181,
          1.3172,
          1.3162,
          1.3157,
          1.3158,
          1.3165,
          1.3176,
          1.3179,
          1.3181,
          1.3182,
          1.3184,
          1.3186,
          1.3188,
          1.3191,
          1.3194,
          1.3195,
          1.3195,
          1.3194,
          1.319,
          1.3178,
          1.317,
          1.3157,
          1.3151,
          1.3148,
          1.3147,
          1.3145,
          1.314,
          1.3134,
          1.313,
          1.3123,
          1.3122,
          1.3115,
          1.3109
        ]
      },
      {
        "type": "line",
        "color": "#f4a460",
        "line_style": "solid",
        "x": [
          "2019-03-28T07:40",
          "2019-03-28T09:30"
        ],
        "values": [
          1.3188,
          1.3189
        ]
      }
    ],
    "xlim": [
      "2019-03-27T20:52",
      "2019-03-28T16:08"
    ],
    "ylim": [
      1.3069,
      1.3278
    ],
    "xticks": [
      {
        "value": "2019-03-27T20:55",
        "label": "27 Mar 2019"
      },
      {
        "value": "2019-03-27T22:15",
        "label": "27 Mar 22:15"
      },
      {
        "value": "2019-03-27T23:35",
        "label": "27 Mar 23:35"
      },
      {
        "value": "2019-03-28T00:55",
        "label": "28 Mar 00:55"
      },
      {
        "value": "2019-03-28T02:15",
        "label": "28 Mar 02:15"
      },
      {
        "value": "2019-03-28T03:35",
        "label": "28 Mar 03:35"
      },
      {
        "value": "2019-03-28T04:55",
        "label": "28 Mar 04:55"
      },
      {
        "value": "2019-03-28T06:15",
        "label": "28 Mar 06:15"
      },
      {
        "value": "2019-03-28T07:35",
        "label": "28 Mar 07:35"
      },
      {
        "value": "2019-03-28T08:55",
        "label": "28 Mar 08:55"
      },
      {
        "value": "2019-03-28T10:15",
        "label": "28 Mar 10:15"
      },
      {
        "value": "2019-03-28T11:35",
        "label": "28 Mar 11:35"
      },
      {
        "value": "2019-03-28T12:55",
        "label": "28 Mar 12:55"
      },
      {
        "value": "2019-03-28T14:15",
        "label": "28 Mar 14:15"
      },
      {
        "value": "2019-03-28T15:35",
        "label": "28 Mar 15:35"
      }
    ],
    "yticks": [
      1.32735,
      1.32555,
      {
        "value": 1.3238,
        "label": "1.32380"
      },
      1.32205,
      1.32025,
      {
        "value": 1.3185,
        "label": "1.31850"
      },
      {
        "value": 1.3167,
        "label": "1.31670"
      },
      1.31495,
      {
        "value": 1.3132,
        "label": "1.31320"
      },
      {
        "value": 1.3114,
        "label": "1.31140"
      },
      1.30965,
      1.30785
    ],
    "ref_lines": [
      {
        "axis": "y",
        "value": 1.31982,
        "label": "1.31982",
        "color": "#ffa500"
      },
      {
        "axis": "y",
        "value": 1.31636,
        "label": "1.31636",
        "color": "#ffa500"
      }
    ],
    "annotations": [
      "ショートエントリー",
      "半分決済",
      "全決済"
    ]
  }
}
